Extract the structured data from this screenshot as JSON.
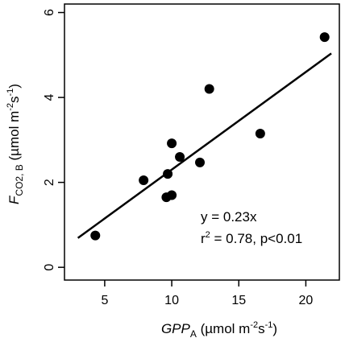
{
  "chart_data": {
    "type": "scatter",
    "xlabel": {
      "main": "GPP",
      "sub": "A",
      "unit_prefix": " (µmol m",
      "exp1": "-2",
      "mid": "s",
      "exp2": "-1",
      "unit_suffix": ")"
    },
    "ylabel": {
      "main": "F",
      "sub": "CO2, B",
      "unit_prefix": " (µmol m",
      "exp1": "-2",
      "mid": "s",
      "exp2": "-1",
      "unit_suffix": ")"
    },
    "xlim": [
      2,
      22.5
    ],
    "ylim": [
      -0.3,
      6.2
    ],
    "x_ticks": [
      5,
      10,
      15,
      20
    ],
    "y_ticks": [
      0,
      2,
      4,
      6
    ],
    "grid": false,
    "points": [
      {
        "x": 4.3,
        "y": 0.75
      },
      {
        "x": 7.9,
        "y": 2.05
      },
      {
        "x": 9.6,
        "y": 1.65
      },
      {
        "x": 9.7,
        "y": 2.2
      },
      {
        "x": 10.0,
        "y": 1.7
      },
      {
        "x": 10.0,
        "y": 2.92
      },
      {
        "x": 10.6,
        "y": 2.6
      },
      {
        "x": 12.1,
        "y": 2.47
      },
      {
        "x": 12.8,
        "y": 4.2
      },
      {
        "x": 16.6,
        "y": 3.15
      },
      {
        "x": 21.4,
        "y": 5.42
      }
    ],
    "fit_line": {
      "slope": 0.23,
      "x_start": 3.0,
      "x_end": 21.9
    },
    "annotation": {
      "equation": "y = 0.23x",
      "stats_prefix": "r",
      "stats_exp": "2",
      "stats_suffix": " = 0.78, p<0.01"
    },
    "colors": {
      "points": "#000000",
      "line": "#000000",
      "axis": "#000000"
    }
  }
}
